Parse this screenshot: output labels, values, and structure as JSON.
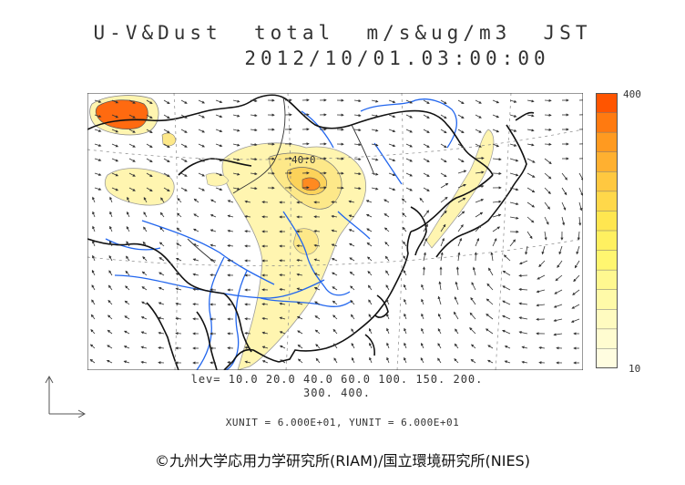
{
  "header": {
    "title": "U-V&Dust  total  m/s&ug/m3  JST",
    "datetime": "2012/10/01.03:00:00"
  },
  "colorbar": {
    "max_label": "400",
    "min_label": "10",
    "colors": [
      "#ff5500",
      "#ff7a10",
      "#ff9a20",
      "#ffb030",
      "#ffc840",
      "#ffd84a",
      "#ffe650",
      "#fff060",
      "#fff670",
      "#fff890",
      "#fffaa8",
      "#fffbc0",
      "#fffcd0",
      "#fffde0"
    ]
  },
  "legend": {
    "levels_line1": "lev= 10.0 20.0 40.0 60.0 100. 150. 200.",
    "levels_line2": "300. 400."
  },
  "units": {
    "text": "XUNIT = 6.000E+01, YUNIT = 6.000E+01"
  },
  "map": {
    "contour_label": "40.0",
    "colors": {
      "land_border": "#111111",
      "river": "#2266ee",
      "dust_low": "#fff5b0",
      "dust_high": "#ff6600"
    }
  },
  "footer": {
    "credit": "©九州大学応用力学研究所(RIAM)/国立環境研究所(NIES)"
  }
}
